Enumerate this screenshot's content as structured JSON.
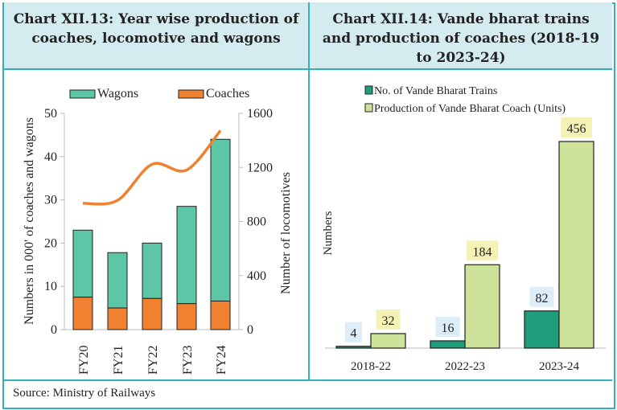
{
  "titles": {
    "left": "Chart XII.13: Year wise production of coaches, locomotive and wagons",
    "right": "Chart XII.14: Vande bharat trains and production of coaches (2018-19 to 2023-24)"
  },
  "source": "Source: Ministry of Railways",
  "chart_data": [
    {
      "type": "bar",
      "stacked": true,
      "categories": [
        "FY20",
        "FY21",
        "FY22",
        "FY23",
        "FY24"
      ],
      "series": [
        {
          "name": "Coaches",
          "values": [
            7.5,
            5.0,
            7.2,
            6.0,
            6.6
          ],
          "color": "#f08130",
          "axis": "left"
        },
        {
          "name": "Wagons",
          "values": [
            15.5,
            12.8,
            12.8,
            22.5,
            37.4
          ],
          "color": "#5cc6a6",
          "axis": "left"
        },
        {
          "name": "",
          "type": "line",
          "values": [
            934,
            956,
            1223,
            1181,
            1472
          ],
          "color": "#f08130",
          "axis": "right"
        }
      ],
      "ylabel": "Numbers in 000' of coaches and wagons",
      "y2label": "Number of locomotives",
      "ylim": [
        0,
        50
      ],
      "yticks": [
        "0",
        "10",
        "20",
        "30",
        "40",
        "50"
      ],
      "y2lim": [
        0,
        1600
      ],
      "y2ticks": [
        "0",
        "400",
        "800",
        "1200",
        "1600"
      ],
      "legend": "top",
      "grid": false
    },
    {
      "type": "bar",
      "categories": [
        "2018-22",
        "2022-23",
        "2023-24"
      ],
      "series": [
        {
          "name": "No. of Vande Bharat Trains",
          "values": [
            4,
            16,
            82
          ],
          "color": "#1f9e7c",
          "label_bg": "#ddeef8"
        },
        {
          "name": "Production of Vande Bharat Coach (Units)",
          "values": [
            32,
            184,
            456
          ],
          "color": "#cde39a",
          "label_bg": "#f4f2b4"
        }
      ],
      "ylabel": "Numbers",
      "ylim": [
        0,
        456
      ],
      "legend": "top-left",
      "grid": false
    }
  ]
}
